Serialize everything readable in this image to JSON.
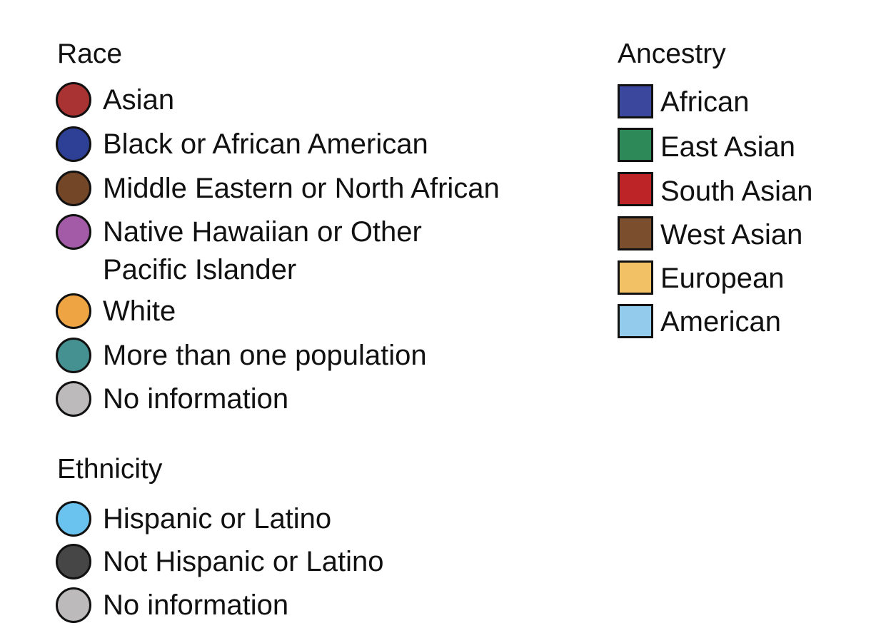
{
  "race_legend": {
    "title": "Race",
    "items": [
      {
        "label": "Asian",
        "color": "#a93232"
      },
      {
        "label": "Black or African American",
        "color": "#2e3f96"
      },
      {
        "label": "Middle Eastern or North African",
        "color": "#734628"
      },
      {
        "label_line1": "Native Hawaiian or Other",
        "label_line2": "Pacific Islander",
        "color": "#a35ba7"
      },
      {
        "label": "White",
        "color": "#eea443"
      },
      {
        "label": "More than one population",
        "color": "#459090"
      },
      {
        "label": "No information",
        "color": "#bcbabb"
      }
    ]
  },
  "ethnicity_legend": {
    "title": "Ethnicity",
    "items": [
      {
        "label": "Hispanic or Latino",
        "color": "#6ac3ef"
      },
      {
        "label": "Not Hispanic or Latino",
        "color": "#464646"
      },
      {
        "label": "No information",
        "color": "#bcbabb"
      }
    ]
  },
  "ancestry_legend": {
    "title": "Ancestry",
    "items": [
      {
        "label": "African",
        "color": "#3a479c"
      },
      {
        "label": "East Asian",
        "color": "#2d8957"
      },
      {
        "label": "South Asian",
        "color": "#bd2427"
      },
      {
        "label": "West Asian",
        "color": "#7b4e2d"
      },
      {
        "label": "European",
        "color": "#f2c165"
      },
      {
        "label": "American",
        "color": "#92cbeb"
      }
    ]
  }
}
